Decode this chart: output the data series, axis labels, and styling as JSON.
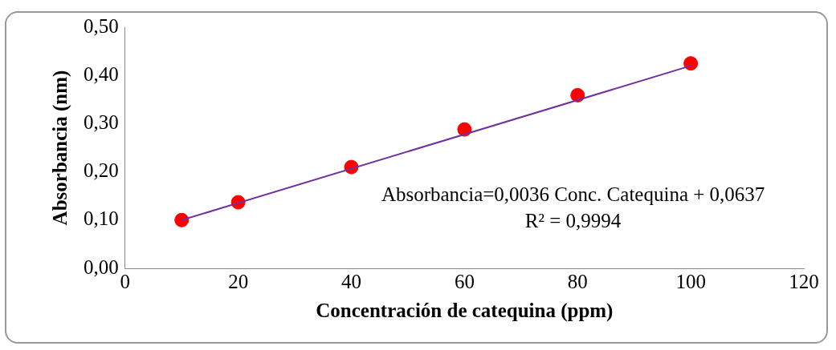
{
  "chart_data": {
    "type": "scatter",
    "xlabel": "Concentración de catequina (ppm)",
    "ylabel": "Absorbancia (nm)",
    "x": [
      10,
      20,
      40,
      60,
      80,
      100
    ],
    "series": [
      {
        "color": "#ff0000",
        "marker": "circle",
        "values": [
          0.1,
          0.137,
          0.21,
          0.288,
          0.359,
          0.425
        ]
      },
      {
        "type": "line",
        "color": "#7030a0",
        "marker": "none",
        "x": [
          10,
          100
        ],
        "values": [
          0.1,
          0.42
        ]
      }
    ],
    "xlim": [
      0,
      120
    ],
    "xticks": [
      0,
      20,
      40,
      60,
      80,
      100,
      120
    ],
    "ylim": [
      0,
      0.5
    ],
    "yticks": [
      {
        "value": 0,
        "label": "0,00"
      },
      {
        "value": 0.1,
        "label": "0,10"
      },
      {
        "value": 0.2,
        "label": "0,20"
      },
      {
        "value": 0.3,
        "label": "0,30"
      },
      {
        "value": 0.4,
        "label": "0,40"
      },
      {
        "value": 0.5,
        "label": "0,50"
      }
    ],
    "grid": false,
    "legend": false,
    "annotations": [
      "Absorbancia=0,0036 Conc. Catequina + 0,0637",
      "R² = 0,9994"
    ]
  }
}
